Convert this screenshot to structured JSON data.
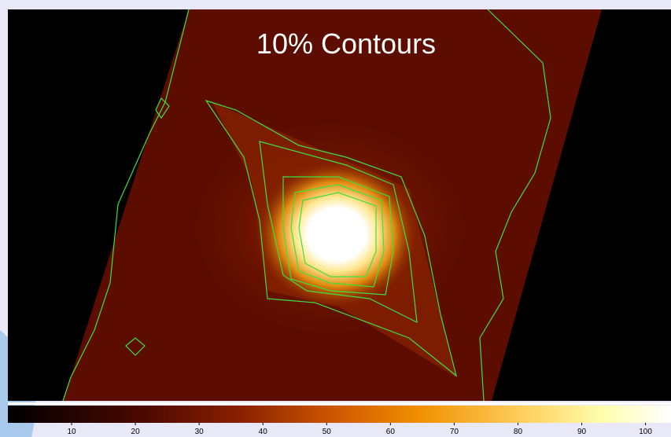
{
  "title": "10% Contours",
  "colorbar": {
    "lim": [
      0,
      104
    ],
    "ticks": [
      10,
      20,
      30,
      40,
      50,
      60,
      70,
      80,
      90,
      100
    ]
  }
}
